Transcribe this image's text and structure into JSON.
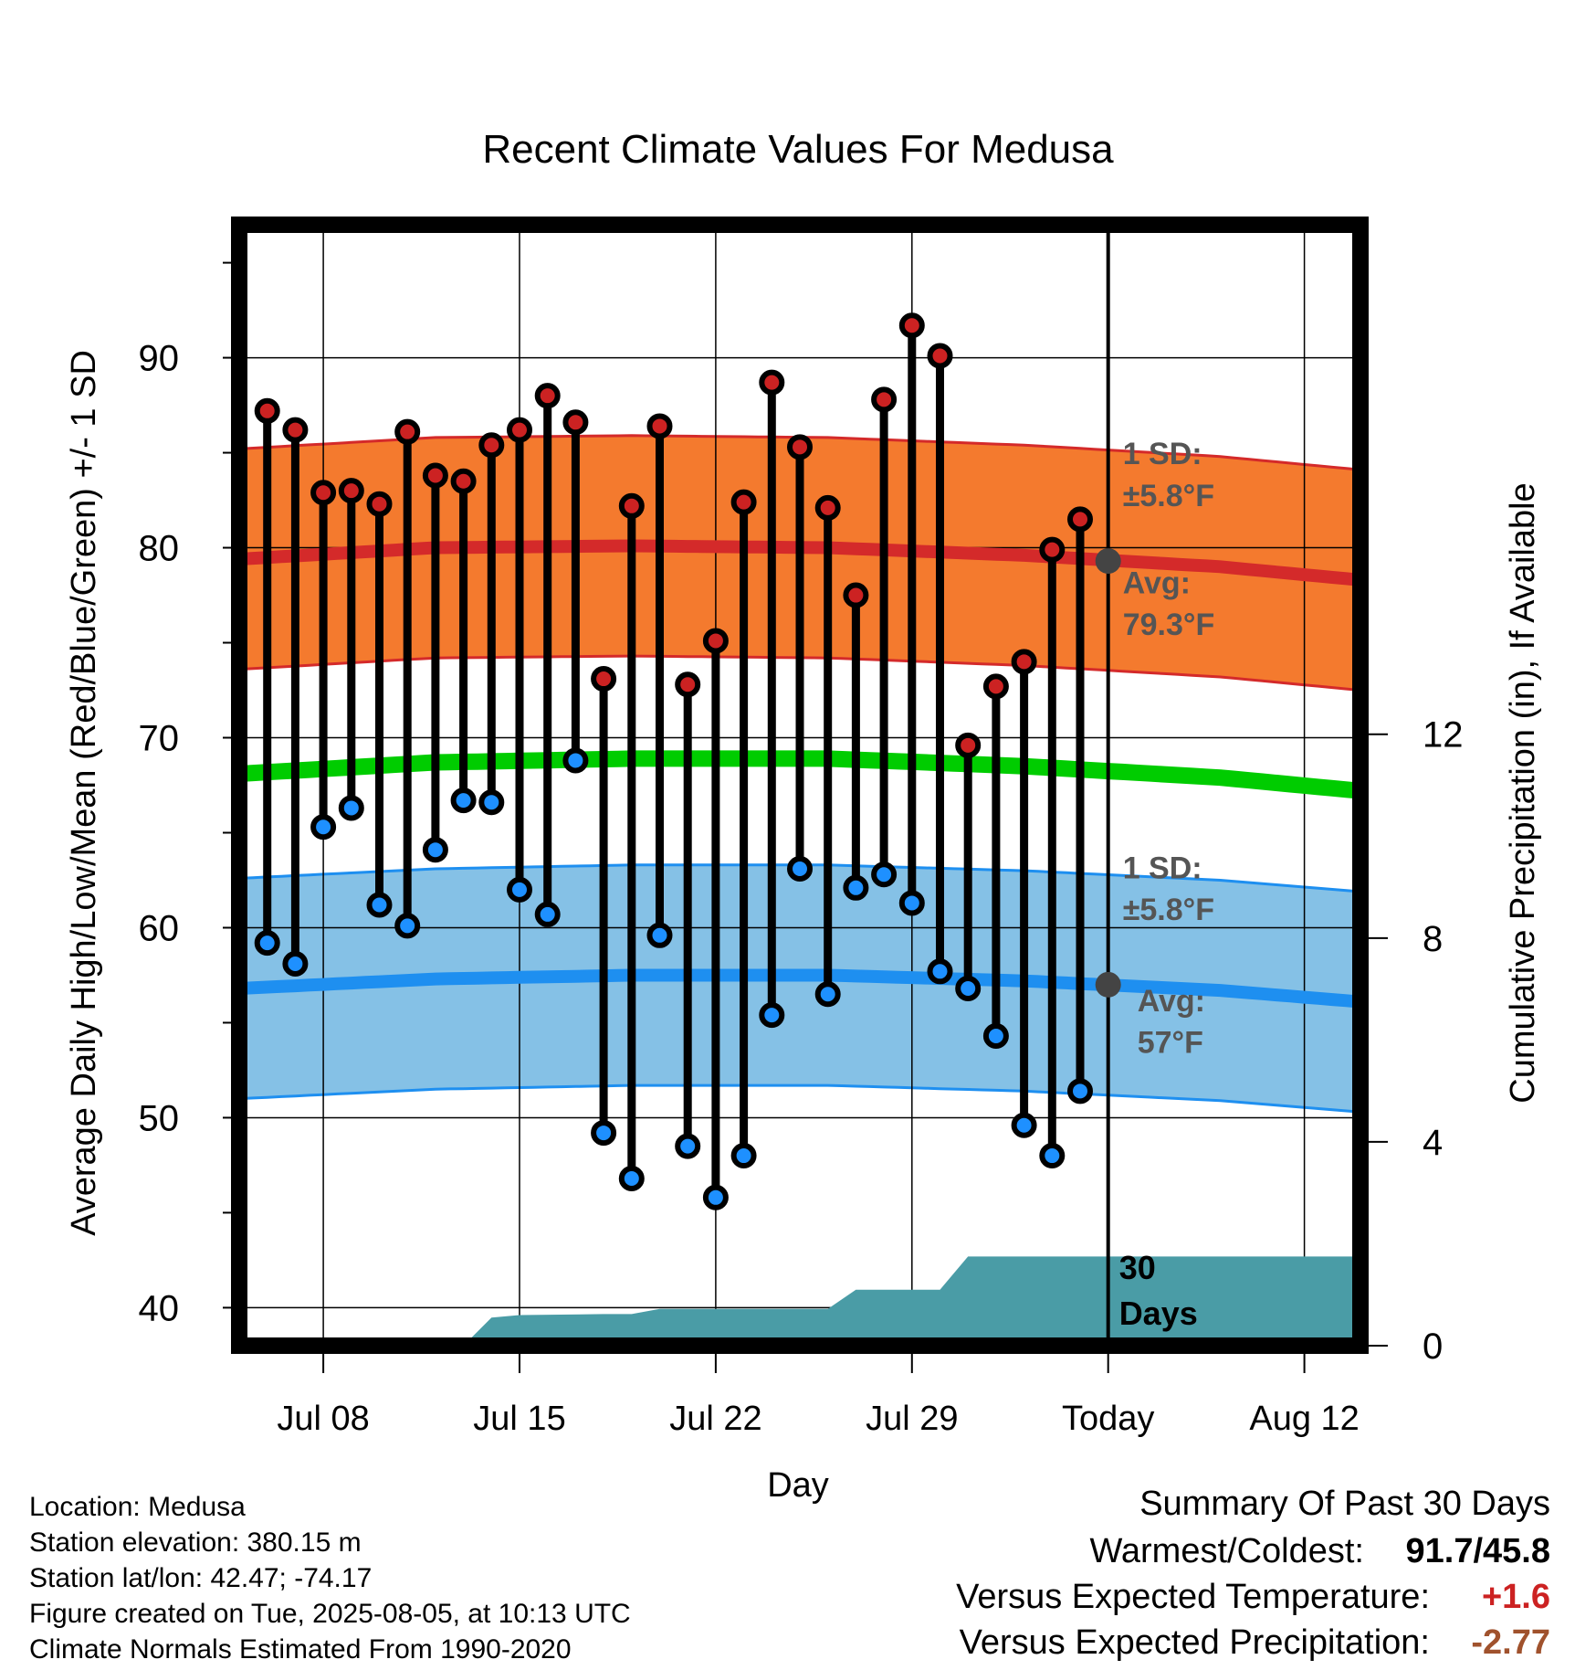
{
  "chart_data": {
    "type": "line",
    "title": "Recent Climate Values For Medusa",
    "xlabel": "Day",
    "ylabel": "Average Daily High/Low/Mean (Red/Blue/Green) +/- 1 SD",
    "y2label": "Cumulative Precipitation (in), If Available",
    "x_tick_labels": [
      "Jul 08",
      "Jul 15",
      "Jul 22",
      "Jul 29",
      "Today",
      "Aug 12"
    ],
    "y_ticks": [
      40,
      50,
      60,
      70,
      80,
      90
    ],
    "y2_ticks": [
      0,
      4,
      8,
      12
    ],
    "ylim": [
      38,
      97
    ],
    "y2lim": [
      0,
      22
    ],
    "xlim": [
      "Jul 05",
      "Aug 14"
    ],
    "grid": true,
    "daily_obs": {
      "dates": [
        "Jul 06",
        "Jul 07",
        "Jul 08",
        "Jul 09",
        "Jul 10",
        "Jul 11",
        "Jul 12",
        "Jul 13",
        "Jul 14",
        "Jul 15",
        "Jul 16",
        "Jul 17",
        "Jul 18",
        "Jul 19",
        "Jul 20",
        "Jul 21",
        "Jul 22",
        "Jul 23",
        "Jul 24",
        "Jul 25",
        "Jul 26",
        "Jul 27",
        "Jul 28",
        "Jul 29",
        "Jul 30",
        "Jul 31",
        "Aug 01",
        "Aug 02",
        "Aug 03",
        "Aug 04"
      ],
      "highs": [
        87.2,
        86.2,
        82.9,
        83.0,
        82.3,
        86.1,
        83.8,
        83.5,
        85.4,
        86.2,
        88.0,
        86.6,
        73.1,
        82.2,
        86.4,
        72.8,
        75.1,
        82.4,
        88.7,
        85.3,
        82.1,
        77.5,
        87.8,
        91.7,
        90.1,
        69.6,
        72.7,
        74.0,
        79.9,
        81.5
      ],
      "lows": [
        59.2,
        58.1,
        65.3,
        66.3,
        61.2,
        60.1,
        64.1,
        66.7,
        66.6,
        62.0,
        60.7,
        68.8,
        49.2,
        46.8,
        59.6,
        48.5,
        45.8,
        48.0,
        55.4,
        63.1,
        56.5,
        62.1,
        62.8,
        61.3,
        57.7,
        56.8,
        54.3,
        49.6,
        48.0,
        51.4
      ],
      "high_color": "#cc2222",
      "low_color": "#1e90ff"
    },
    "normals": {
      "dates": [
        "Jul 05",
        "Jul 12",
        "Jul 19",
        "Jul 26",
        "Aug 02",
        "Aug 09",
        "Aug 14"
      ],
      "avg_high": [
        79.4,
        80.0,
        80.1,
        80.0,
        79.6,
        79.0,
        78.3
      ],
      "avg_low": [
        56.8,
        57.3,
        57.5,
        57.5,
        57.2,
        56.7,
        56.1
      ],
      "avg_mean": [
        68.1,
        68.7,
        68.9,
        68.9,
        68.5,
        67.9,
        67.2
      ],
      "sd": 5.8,
      "high_band_color": "#f47a2e",
      "high_line_color": "#d42a2a",
      "low_band_color": "#85c1e6",
      "low_line_color": "#1e8ff0",
      "mean_line_color": "#00cc00"
    },
    "precip": {
      "dates": [
        "Jul 05",
        "Jul 12",
        "Jul 13",
        "Jul 14",
        "Jul 15",
        "Jul 18",
        "Jul 19",
        "Jul 20",
        "Jul 22",
        "Jul 26",
        "Jul 27",
        "Jul 28",
        "Jul 29",
        "Jul 30",
        "Jul 31",
        "Aug 14"
      ],
      "cumulative": [
        0,
        0,
        0,
        0.55,
        0.6,
        0.62,
        0.62,
        0.72,
        0.72,
        0.72,
        1.1,
        1.1,
        1.1,
        1.1,
        1.75,
        1.75
      ],
      "color": "#4a9ca6",
      "label_line1": "30",
      "label_line2": "Days"
    },
    "annotations": {
      "high_sd_line1": "1 SD:",
      "high_sd_line2": "±5.8°F",
      "high_avg_line1": "Avg:",
      "high_avg_line2": "79.3°F",
      "low_sd_line1": "1 SD:",
      "low_sd_line2": "±5.8°F",
      "low_avg_line1": "Avg:",
      "low_avg_line2": "57°F",
      "today_high_avg": 79.3,
      "today_low_avg": 57.0
    }
  },
  "info": {
    "location": "Location: Medusa",
    "elevation": "Station elevation: 380.15 m",
    "latlon": "Station lat/lon: 42.47; -74.17",
    "created": "Figure created on Tue, 2025-08-05, at 10:13 UTC",
    "normals": "Climate Normals Estimated From 1990-2020"
  },
  "summary": {
    "title": "Summary Of Past 30 Days",
    "warmest_label": "Warmest/Coldest:",
    "warmest_value": "91.7/45.8",
    "temp_label": "Versus Expected Temperature:",
    "temp_value": "+1.6",
    "temp_color": "#cc2222",
    "precip_label": "Versus Expected Precipitation:",
    "precip_value": "-2.77",
    "precip_color": "#a0522d"
  }
}
